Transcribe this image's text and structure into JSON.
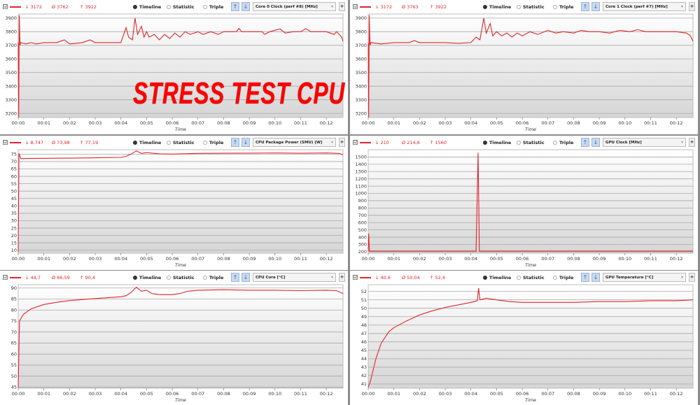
{
  "overlay_text": "STRESS TEST CPU",
  "controls": {
    "timeline": "Timeline",
    "statistic": "Statistic",
    "triple": "Triple",
    "checkbox": "☑",
    "plus": "+",
    "up_icon": "↑",
    "down_icon": "↓",
    "min_symbol": "↓",
    "avg_symbol": "Ø",
    "max_symbol": "↑"
  },
  "colors": {
    "series": "#e0262b",
    "grid": "#a8a8a8"
  },
  "chart_data": [
    {
      "type": "line",
      "sensor": "Core 0 Clock (perf #8) [MHz]",
      "stats": {
        "min": "3172",
        "avg": "3762",
        "max": "3922"
      },
      "xlabel": "Time",
      "xticks": [
        "00:00",
        "00:01",
        "00:02",
        "00:03",
        "00:04",
        "00:05",
        "00:06",
        "00:07",
        "00:08",
        "00:09",
        "00:10",
        "00:11",
        "00:12"
      ],
      "xlim": [
        0,
        12.65
      ],
      "ylim": [
        3170,
        3930
      ],
      "yticks": [
        3200,
        3300,
        3400,
        3500,
        3600,
        3700,
        3800,
        3900
      ],
      "grid": true,
      "points": [
        [
          0,
          3720
        ],
        [
          0.02,
          3172
        ],
        [
          0.04,
          3922
        ],
        [
          0.07,
          3700
        ],
        [
          0.1,
          3720
        ],
        [
          0.3,
          3710
        ],
        [
          0.5,
          3720
        ],
        [
          0.7,
          3710
        ],
        [
          1.0,
          3720
        ],
        [
          1.5,
          3720
        ],
        [
          1.8,
          3740
        ],
        [
          2.0,
          3710
        ],
        [
          2.5,
          3720
        ],
        [
          2.8,
          3740
        ],
        [
          3.0,
          3720
        ],
        [
          4.0,
          3720
        ],
        [
          4.2,
          3830
        ],
        [
          4.3,
          3760
        ],
        [
          4.45,
          3740
        ],
        [
          4.55,
          3900
        ],
        [
          4.65,
          3780
        ],
        [
          4.8,
          3840
        ],
        [
          4.9,
          3760
        ],
        [
          5.0,
          3800
        ],
        [
          5.1,
          3760
        ],
        [
          5.3,
          3780
        ],
        [
          5.5,
          3740
        ],
        [
          5.7,
          3780
        ],
        [
          5.9,
          3750
        ],
        [
          6.1,
          3790
        ],
        [
          6.3,
          3760
        ],
        [
          6.5,
          3800
        ],
        [
          6.7,
          3780
        ],
        [
          7.0,
          3800
        ],
        [
          7.2,
          3780
        ],
        [
          7.5,
          3800
        ],
        [
          7.8,
          3780
        ],
        [
          8.0,
          3800
        ],
        [
          8.5,
          3800
        ],
        [
          8.6,
          3825
        ],
        [
          8.7,
          3800
        ],
        [
          9.5,
          3800
        ],
        [
          9.6,
          3780
        ],
        [
          9.8,
          3800
        ],
        [
          10.2,
          3820
        ],
        [
          10.4,
          3790
        ],
        [
          10.7,
          3800
        ],
        [
          11.0,
          3800
        ],
        [
          11.2,
          3822
        ],
        [
          11.4,
          3800
        ],
        [
          12.0,
          3800
        ],
        [
          12.3,
          3780
        ],
        [
          12.4,
          3800
        ],
        [
          12.6,
          3760
        ],
        [
          12.65,
          3730
        ]
      ]
    },
    {
      "type": "line",
      "sensor": "Core 1 Clock (perf #7) [MHz]",
      "stats": {
        "min": "3172",
        "avg": "3763",
        "max": "3922"
      },
      "xlabel": "Time",
      "xticks": [
        "00:00",
        "00:01",
        "00:02",
        "00:03",
        "00:04",
        "00:05",
        "00:06",
        "00:07",
        "00:08",
        "00:09",
        "00:10",
        "00:11",
        "00:12"
      ],
      "xlim": [
        0,
        12.65
      ],
      "ylim": [
        3170,
        3930
      ],
      "yticks": [
        3200,
        3300,
        3400,
        3500,
        3600,
        3700,
        3800,
        3900
      ],
      "grid": true,
      "points": [
        [
          0,
          3720
        ],
        [
          0.02,
          3172
        ],
        [
          0.04,
          3922
        ],
        [
          0.07,
          3700
        ],
        [
          0.1,
          3720
        ],
        [
          0.5,
          3710
        ],
        [
          1.0,
          3720
        ],
        [
          1.6,
          3720
        ],
        [
          1.8,
          3735
        ],
        [
          2.0,
          3720
        ],
        [
          3.0,
          3720
        ],
        [
          3.5,
          3715
        ],
        [
          4.0,
          3720
        ],
        [
          4.2,
          3760
        ],
        [
          4.35,
          3740
        ],
        [
          4.5,
          3900
        ],
        [
          4.6,
          3790
        ],
        [
          4.75,
          3860
        ],
        [
          4.85,
          3770
        ],
        [
          5.0,
          3800
        ],
        [
          5.2,
          3770
        ],
        [
          5.4,
          3790
        ],
        [
          5.6,
          3760
        ],
        [
          5.8,
          3790
        ],
        [
          6.0,
          3770
        ],
        [
          6.3,
          3800
        ],
        [
          6.6,
          3780
        ],
        [
          7.0,
          3810
        ],
        [
          7.3,
          3790
        ],
        [
          7.6,
          3800
        ],
        [
          8.0,
          3790
        ],
        [
          8.3,
          3810
        ],
        [
          8.6,
          3800
        ],
        [
          9.0,
          3800
        ],
        [
          9.4,
          3790
        ],
        [
          9.8,
          3810
        ],
        [
          10.2,
          3800
        ],
        [
          10.5,
          3815
        ],
        [
          10.8,
          3800
        ],
        [
          11.5,
          3800
        ],
        [
          12.0,
          3800
        ],
        [
          12.4,
          3790
        ],
        [
          12.55,
          3770
        ],
        [
          12.65,
          3730
        ]
      ]
    },
    {
      "type": "line",
      "sensor": "CPU Package Power (SMU) [W]",
      "stats": {
        "min": "8,747",
        "avg": "73,98",
        "max": "77,19"
      },
      "xlabel": "Time",
      "xticks": [
        "00:00",
        "00:01",
        "00:02",
        "00:03",
        "00:04",
        "00:05",
        "00:06",
        "00:07",
        "00:08",
        "00:09",
        "00:10",
        "00:11",
        "00:12"
      ],
      "xlim": [
        0,
        12.65
      ],
      "ylim": [
        8,
        78
      ],
      "yticks": [
        10,
        15,
        20,
        25,
        30,
        35,
        40,
        45,
        50,
        55,
        60,
        65,
        70,
        75
      ],
      "grid": true,
      "points": [
        [
          0,
          8.7
        ],
        [
          0.03,
          75.5
        ],
        [
          0.1,
          72
        ],
        [
          1,
          72.2
        ],
        [
          2,
          72.3
        ],
        [
          3,
          72.5
        ],
        [
          4,
          72.8
        ],
        [
          4.2,
          73.5
        ],
        [
          4.4,
          75
        ],
        [
          4.6,
          77.2
        ],
        [
          4.8,
          75.5
        ],
        [
          5,
          76
        ],
        [
          5.5,
          75.2
        ],
        [
          6,
          75
        ],
        [
          7,
          75.5
        ],
        [
          8,
          75.6
        ],
        [
          9,
          75.7
        ],
        [
          10,
          75.8
        ],
        [
          11,
          75.6
        ],
        [
          12,
          75.8
        ],
        [
          12.5,
          75.5
        ],
        [
          12.65,
          74.5
        ]
      ]
    },
    {
      "type": "line",
      "sensor": "GPU Clock [MHz]",
      "stats": {
        "min": "210",
        "avg": "214,6",
        "max": "1560"
      },
      "xlabel": "Time",
      "xticks": [
        "00:00",
        "00:01",
        "00:02",
        "00:03",
        "00:04",
        "00:05",
        "00:06",
        "00:07",
        "00:08",
        "00:09",
        "00:10",
        "00:11",
        "00:12"
      ],
      "xlim": [
        0,
        12.65
      ],
      "ylim": [
        180,
        1600
      ],
      "yticks": [
        200,
        300,
        400,
        500,
        600,
        700,
        800,
        900,
        1000,
        1100,
        1200,
        1300,
        1400,
        1500
      ],
      "grid": true,
      "points": [
        [
          0,
          210
        ],
        [
          0.02,
          450
        ],
        [
          0.05,
          210
        ],
        [
          4.2,
          210
        ],
        [
          4.28,
          1560
        ],
        [
          4.33,
          210
        ],
        [
          12.65,
          210
        ]
      ]
    },
    {
      "type": "line",
      "sensor": "CPU Core [°C]",
      "stats": {
        "min": "44,7",
        "avg": "86,59",
        "max": "90,4"
      },
      "xlabel": "Time",
      "xticks": [
        "00:00",
        "00:01",
        "00:02",
        "00:03",
        "00:04",
        "00:05",
        "00:06",
        "00:07",
        "00:08",
        "00:09",
        "00:10",
        "00:11",
        "00:12"
      ],
      "xlim": [
        0,
        12.65
      ],
      "ylim": [
        44.5,
        91.5
      ],
      "yticks": [
        45,
        50,
        55,
        60,
        65,
        70,
        75,
        80,
        85,
        90
      ],
      "grid": true,
      "points": [
        [
          0,
          44.7
        ],
        [
          0.05,
          75
        ],
        [
          0.2,
          78
        ],
        [
          0.5,
          80.5
        ],
        [
          1,
          82.5
        ],
        [
          1.5,
          83.5
        ],
        [
          2,
          84.3
        ],
        [
          3,
          85.2
        ],
        [
          4,
          86
        ],
        [
          4.2,
          86.5
        ],
        [
          4.4,
          88
        ],
        [
          4.6,
          90.4
        ],
        [
          4.8,
          88.5
        ],
        [
          5,
          89
        ],
        [
          5.2,
          87.5
        ],
        [
          5.5,
          87
        ],
        [
          6,
          87
        ],
        [
          6.3,
          87.5
        ],
        [
          6.6,
          88.5
        ],
        [
          7,
          89
        ],
        [
          8,
          89.2
        ],
        [
          9,
          89
        ],
        [
          10,
          89
        ],
        [
          11,
          88.8
        ],
        [
          12,
          89
        ],
        [
          12.4,
          88.8
        ],
        [
          12.65,
          87.5
        ]
      ]
    },
    {
      "type": "line",
      "sensor": "GPU Temperature [°C]",
      "stats": {
        "min": "40,6",
        "avg": "50,04",
        "max": "52,4"
      },
      "xlabel": "Time",
      "xticks": [
        "00:00",
        "00:01",
        "00:02",
        "00:03",
        "00:04",
        "00:05",
        "00:06",
        "00:07",
        "00:08",
        "00:09",
        "00:10",
        "00:11",
        "00:12"
      ],
      "xlim": [
        0,
        12.65
      ],
      "ylim": [
        40.5,
        52.8
      ],
      "yticks": [
        41,
        42,
        43,
        44,
        45,
        46,
        47,
        48,
        49,
        50,
        51,
        52
      ],
      "grid": true,
      "points": [
        [
          0,
          40.6
        ],
        [
          0.1,
          41.5
        ],
        [
          0.3,
          44
        ],
        [
          0.5,
          45.8
        ],
        [
          0.8,
          47.2
        ],
        [
          1,
          47.7
        ],
        [
          1.5,
          48.5
        ],
        [
          2,
          49.2
        ],
        [
          2.5,
          49.7
        ],
        [
          3,
          50.1
        ],
        [
          3.5,
          50.4
        ],
        [
          4,
          50.7
        ],
        [
          4.25,
          50.9
        ],
        [
          4.3,
          52.4
        ],
        [
          4.35,
          51
        ],
        [
          4.6,
          51.2
        ],
        [
          5,
          51
        ],
        [
          5.5,
          50.8
        ],
        [
          6,
          50.7
        ],
        [
          7,
          50.7
        ],
        [
          8,
          50.7
        ],
        [
          9,
          50.8
        ],
        [
          10,
          50.8
        ],
        [
          11,
          50.9
        ],
        [
          12,
          50.9
        ],
        [
          12.65,
          51
        ]
      ]
    }
  ]
}
